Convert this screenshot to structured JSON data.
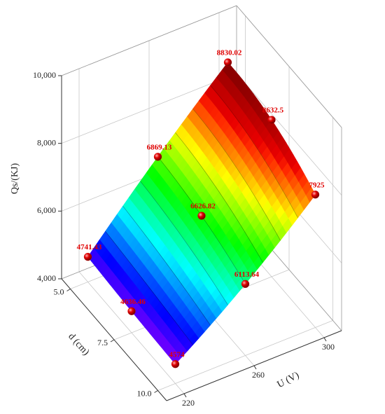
{
  "chart_data": {
    "type": "surface",
    "xlabel": "U (V)",
    "ylabel": "d (cm)",
    "zlabel": "Qs/(KJ)",
    "x": [
      220,
      260,
      300
    ],
    "y": [
      5,
      7.5,
      10
    ],
    "z": [
      [
        4741.43,
        4636.46,
        4574
      ],
      [
        6869.13,
        6626.82,
        6113.64
      ],
      [
        8830.02,
        8632.5,
        7925
      ]
    ],
    "xlim": [
      210,
      310
    ],
    "ylim": [
      4.5,
      10.5
    ],
    "zlim": [
      4000,
      10000
    ],
    "xticks": [
      220,
      260,
      300
    ],
    "yticks": [
      {
        "value": 5,
        "label": "5.0"
      },
      {
        "value": 7.5,
        "label": "7.5"
      },
      {
        "value": 10,
        "label": "10.0"
      }
    ],
    "zticks": [
      {
        "value": 4000,
        "label": "4,000"
      },
      {
        "value": 6000,
        "label": "6,000"
      },
      {
        "value": 8000,
        "label": "8,000"
      },
      {
        "value": 10000,
        "label": "10,000"
      }
    ],
    "grid": true,
    "colormap": "rainbow",
    "marker_color": "#e00000"
  }
}
